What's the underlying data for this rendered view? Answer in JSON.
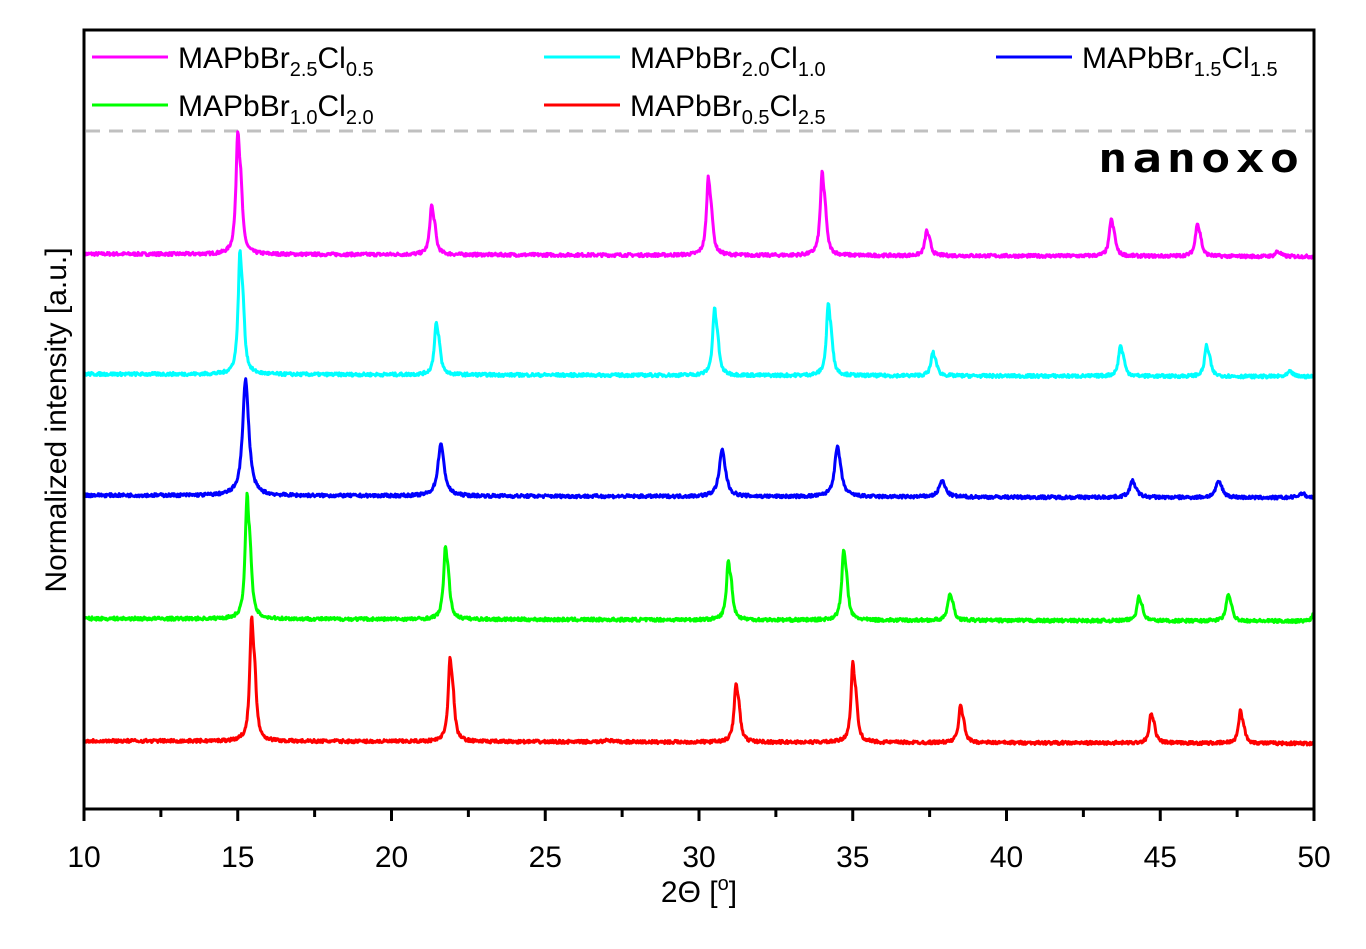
{
  "chart_data": {
    "type": "line",
    "title": "",
    "xlabel": {
      "main": "2Θ [",
      "sup": "o",
      "end": "]"
    },
    "ylabel": "Normalized intensity [a.u.]",
    "xlim": [
      10,
      50
    ],
    "ylim": [
      0,
      7.2
    ],
    "x_ticks": [
      10,
      15,
      20,
      25,
      30,
      35,
      40,
      45,
      50
    ],
    "x_minor_step": 2.5,
    "y_ticks_shown": false,
    "grid": false,
    "legend_placement": "top",
    "legend_separator_color": "#c0c0c0",
    "logo": "nanoxo",
    "series": [
      {
        "name": {
          "base": "MAPbBr",
          "s1": "2.5",
          "mid": "Cl",
          "s2": "0.5"
        },
        "color": "#ff00ff",
        "offset": 5.13,
        "peak_width": 0.07,
        "peaks": [
          [
            15.0,
            1.0
          ],
          [
            21.3,
            0.4
          ],
          [
            30.3,
            0.63
          ],
          [
            34.0,
            0.67
          ],
          [
            37.4,
            0.2
          ],
          [
            43.4,
            0.3
          ],
          [
            46.2,
            0.27
          ],
          [
            48.8,
            0.04
          ]
        ]
      },
      {
        "name": {
          "base": "MAPbBr",
          "s1": "2.0",
          "mid": "Cl",
          "s2": "1.0"
        },
        "color": "#00ffff",
        "offset": 4.02,
        "peak_width": 0.07,
        "peaks": [
          [
            15.07,
            1.0
          ],
          [
            21.45,
            0.42
          ],
          [
            30.5,
            0.54
          ],
          [
            34.2,
            0.58
          ],
          [
            37.6,
            0.19
          ],
          [
            43.7,
            0.25
          ],
          [
            46.5,
            0.25
          ],
          [
            49.2,
            0.04
          ]
        ]
      },
      {
        "name": {
          "base": "MAPbBr",
          "s1": "1.5",
          "mid": "Cl",
          "s2": "1.5"
        },
        "color": "#0000ff",
        "offset": 2.9,
        "peak_width": 0.11,
        "peaks": [
          [
            15.25,
            1.0
          ],
          [
            21.6,
            0.45
          ],
          [
            30.75,
            0.4
          ],
          [
            34.5,
            0.43
          ],
          [
            37.9,
            0.14
          ],
          [
            44.1,
            0.14
          ],
          [
            46.9,
            0.14
          ],
          [
            49.6,
            0.04
          ]
        ]
      },
      {
        "name": {
          "base": "MAPbBr",
          "s1": "1.0",
          "mid": "Cl",
          "s2": "2.0"
        },
        "color": "#00ff00",
        "offset": 1.76,
        "peak_width": 0.07,
        "peaks": [
          [
            15.3,
            1.0
          ],
          [
            21.75,
            0.59
          ],
          [
            30.95,
            0.48
          ],
          [
            34.7,
            0.57
          ],
          [
            38.15,
            0.22
          ],
          [
            44.3,
            0.2
          ],
          [
            47.2,
            0.22
          ],
          [
            50.0,
            0.07
          ]
        ]
      },
      {
        "name": {
          "base": "MAPbBr",
          "s1": "0.5",
          "mid": "Cl",
          "s2": "2.5"
        },
        "color": "#ff0000",
        "offset": 0.63,
        "peak_width": 0.07,
        "peaks": [
          [
            15.45,
            1.0
          ],
          [
            21.9,
            0.68
          ],
          [
            27.0,
            0.02
          ],
          [
            31.2,
            0.48
          ],
          [
            35.0,
            0.64
          ],
          [
            38.5,
            0.3
          ],
          [
            44.7,
            0.24
          ],
          [
            47.6,
            0.26
          ]
        ]
      }
    ]
  }
}
